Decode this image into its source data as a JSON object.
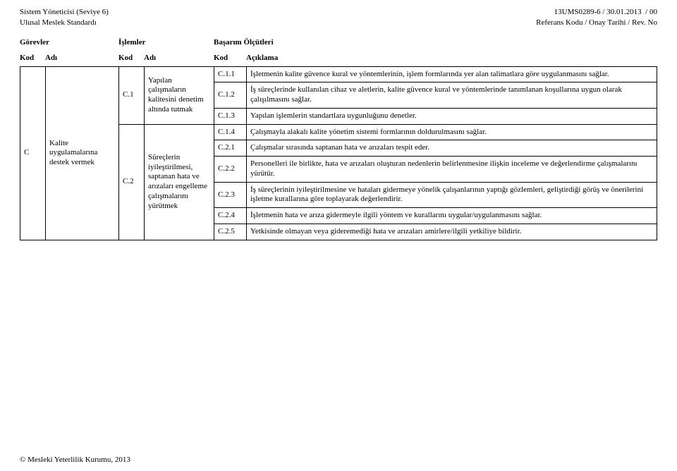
{
  "header": {
    "left_line1": "Sistem Yöneticisi (Seviye 6)",
    "left_line2": "Ulusal Meslek Standardı",
    "right_line1": "13UMS0289-6 / 30.01.2013  / 00",
    "right_line2": "Referans Kodu / Onay Tarihi / Rev. No"
  },
  "section_labels": {
    "gorevler": "Görevler",
    "islemler": "İşlemler",
    "basarim": "Başarım Ölçütleri"
  },
  "col_labels": {
    "kod": "Kod",
    "adi": "Adı",
    "aciklama": "Açıklama"
  },
  "group": {
    "kod": "C",
    "adi": "Kalite uygulamalarına destek vermek"
  },
  "ops": {
    "c1": {
      "kod": "C.1",
      "adi": "Yapılan çalışmaların kalitesini denetim altında tutmak"
    },
    "c2": {
      "kod": "C.2",
      "adi": "Süreçlerin iyileştirilmesi, saptanan hata ve arızaları engelleme çalışmalarını yürütmek"
    }
  },
  "rows": {
    "c11": {
      "kod": "C.1.1",
      "txt": "İşletmenin kalite güvence kural ve yöntemlerinin, işlem formlarında yer alan talimatlara göre uygulanmasını sağlar."
    },
    "c12": {
      "kod": "C.1.2",
      "txt": "İş süreçlerinde kullanılan cihaz ve aletlerin, kalite güvence kural ve yöntemlerinde tanımlanan koşullarına uygun olarak çalışılmasını sağlar."
    },
    "c13": {
      "kod": "C.1.3",
      "txt": "Yapılan işlemlerin standartlara uygunluğunu denetler."
    },
    "c14": {
      "kod": "C.1.4",
      "txt": "Çalışmayla alakalı kalite yönetim sistemi formlarının doldurulmasını sağlar."
    },
    "c21": {
      "kod": "C.2.1",
      "txt": "Çalışmalar sırasında saptanan hata ve arızaları tespit eder."
    },
    "c22": {
      "kod": "C.2.2",
      "txt": "Personelleri ile birlikte, hata ve arızaları oluşturan nedenlerin belirlenmesine ilişkin inceleme ve değerlendirme çalışmalarını yürütür."
    },
    "c23": {
      "kod": "C.2.3",
      "txt": "İş süreçlerinin iyileştirilmesine ve hataları gidermeye yönelik çalışanlarının yaptığı gözlemleri, geliştirdiği görüş ve önerilerini işletme kurallarına göre toplayarak değerlendirir."
    },
    "c24": {
      "kod": "C.2.4",
      "txt": "İşletmenin hata ve arıza gidermeyle ilgili yöntem ve kurallarını uygular/uygulanmasını sağlar."
    },
    "c25": {
      "kod": "C.2.5",
      "txt": "Yetkisinde olmayan veya gideremediği hata ve arızaları amirlere/ilgili yetkiliye bildirir."
    }
  },
  "footer": "© Mesleki Yeterlilik Kurumu, 2013"
}
